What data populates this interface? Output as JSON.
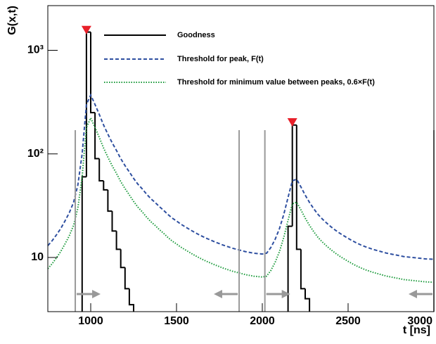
{
  "chart_data": {
    "type": "line",
    "y_label": "G(x,t)",
    "x_label": "t [ns]",
    "xlim": [
      750,
      3000
    ],
    "xticks": [
      1000,
      1500,
      2000,
      2500,
      3000
    ],
    "ylim": [
      3,
      2700
    ],
    "log_y": true,
    "yticks": [
      10,
      {
        "value": 100,
        "label": "10²"
      },
      {
        "value": 1000,
        "label": "10³"
      }
    ],
    "legend": "top",
    "x": [
      750,
      775,
      800,
      825,
      850,
      875,
      900,
      925,
      950,
      975,
      1000,
      1025,
      1050,
      1075,
      1100,
      1125,
      1150,
      1175,
      1200,
      1225,
      1250,
      1275,
      1300,
      1325,
      1350,
      1375,
      1400,
      1425,
      1450,
      1475,
      1500,
      1525,
      1550,
      1575,
      1600,
      1625,
      1650,
      1675,
      1700,
      1725,
      1750,
      1775,
      1800,
      1825,
      1850,
      1875,
      1900,
      1925,
      1950,
      1975,
      2000,
      2025,
      2050,
      2075,
      2100,
      2125,
      2150,
      2175,
      2200,
      2225,
      2250,
      2275,
      2300,
      2325,
      2350,
      2375,
      2400,
      2425,
      2450,
      2475,
      2500,
      2525,
      2550,
      2575,
      2600,
      2625,
      2650,
      2675,
      2700,
      2725,
      2750,
      2775,
      2800,
      2825,
      2850,
      2875,
      2900,
      2925,
      2950,
      2975,
      3000
    ],
    "series": [
      {
        "name": "Goodness",
        "color": "#000000",
        "style": "step",
        "values": [
          null,
          null,
          null,
          null,
          null,
          null,
          null,
          null,
          60,
          1500,
          250,
          90,
          55,
          45,
          28,
          18,
          12,
          8,
          5,
          3.5,
          null,
          null,
          null,
          null,
          null,
          null,
          null,
          null,
          null,
          null,
          null,
          null,
          null,
          null,
          null,
          null,
          null,
          null,
          null,
          null,
          null,
          null,
          null,
          null,
          null,
          null,
          null,
          null,
          null,
          null,
          null,
          null,
          null,
          null,
          null,
          null,
          20,
          190,
          12,
          5,
          4,
          null,
          null,
          null,
          null,
          null,
          null,
          null,
          null,
          null,
          null,
          null,
          null,
          null,
          null,
          null,
          null,
          null,
          null,
          null,
          null,
          null,
          null,
          null,
          null,
          null,
          null,
          null,
          null,
          null,
          null
        ]
      },
      {
        "name": "Threshold for peak, F(t)",
        "color": "#2e4fa0",
        "style": "dashed",
        "values": [
          13,
          14.5,
          16.5,
          19,
          22.5,
          27,
          34,
          50,
          100,
          300,
          370,
          300,
          240,
          190,
          155,
          128,
          108,
          90,
          77,
          67,
          58,
          51,
          46,
          41,
          37,
          34,
          31,
          28.5,
          26,
          24,
          22.5,
          21,
          19.8,
          18.7,
          17.7,
          16.8,
          16,
          15.3,
          14.7,
          14.1,
          13.6,
          13.1,
          12.7,
          12.3,
          12,
          11.7,
          11.4,
          11.2,
          11,
          10.9,
          10.8,
          11,
          12.5,
          15,
          19,
          26,
          38,
          55,
          57,
          48,
          40,
          34,
          29.5,
          26,
          23.5,
          21.5,
          19.8,
          18.4,
          17.2,
          16.2,
          15.3,
          14.5,
          13.8,
          13.2,
          12.7,
          12.3,
          11.9,
          11.6,
          11.3,
          11,
          10.8,
          10.6,
          10.4,
          10.2,
          10.1,
          10,
          9.9,
          9.8,
          9.7,
          9.65,
          9.6
        ]
      },
      {
        "name": "Threshold for minimum value between peaks, 0.6×F(t)",
        "color": "#1a9a3a",
        "style": "dotted",
        "values": [
          7.8,
          8.7,
          9.9,
          11.4,
          13.5,
          16.2,
          20.4,
          30,
          60,
          180,
          222,
          180,
          144,
          114,
          93,
          76.8,
          64.8,
          54,
          46.2,
          40.2,
          34.8,
          30.6,
          27.6,
          24.6,
          22.2,
          20.4,
          18.6,
          17.1,
          15.6,
          14.4,
          13.5,
          12.6,
          11.88,
          11.22,
          10.62,
          10.08,
          9.6,
          9.18,
          8.82,
          8.46,
          8.16,
          7.86,
          7.62,
          7.38,
          7.2,
          7.02,
          6.84,
          6.72,
          6.6,
          6.54,
          6.48,
          6.6,
          7.5,
          9,
          11.4,
          15.6,
          22.8,
          33,
          34.2,
          28.8,
          24,
          20.4,
          17.7,
          15.6,
          14.1,
          12.9,
          11.88,
          11.04,
          10.32,
          9.72,
          9.18,
          8.7,
          8.28,
          7.92,
          7.62,
          7.38,
          7.14,
          6.96,
          6.78,
          6.6,
          6.48,
          6.36,
          6.24,
          6.12,
          6.06,
          6,
          5.94,
          5.88,
          5.82,
          5.79,
          5.76
        ]
      }
    ],
    "peaks": {
      "color": "#e8202a",
      "x": [
        975,
        2175
      ],
      "values": [
        1520,
        195
      ]
    },
    "windows": [
      [
        910,
        1865
      ],
      [
        2015,
        3000
      ]
    ]
  }
}
